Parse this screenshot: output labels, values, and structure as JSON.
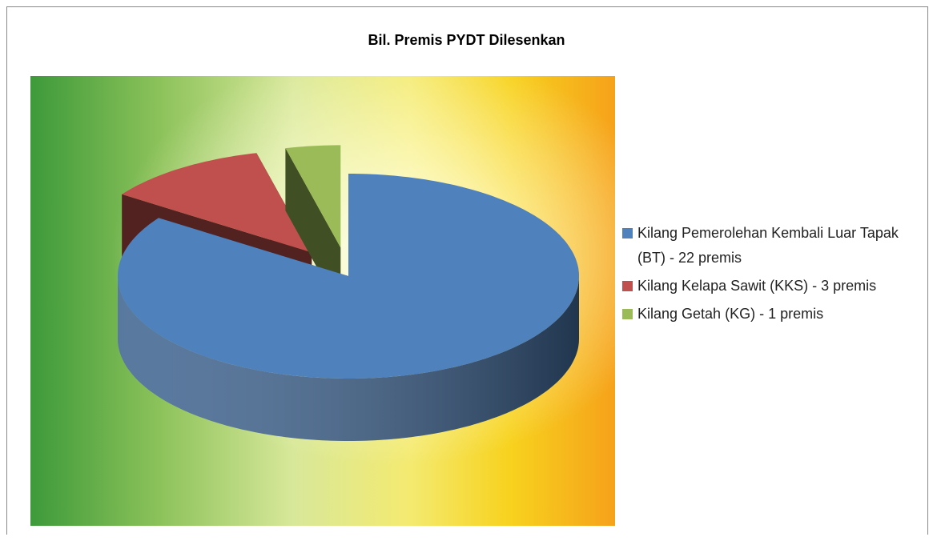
{
  "chart_data": {
    "type": "pie3d",
    "title": "Bil. Premis PYDT Dilesenkan",
    "categories": [
      "Kilang Pemerolehan Kembali Luar Tapak (BT) - 22 premis",
      "Kilang Kelapa Sawit (KKS) - 3 premis",
      "Kilang Getah (KG) - 1 premis"
    ],
    "values": [
      22,
      3,
      1
    ],
    "colors": [
      "#4f81bd",
      "#c0504d",
      "#9bbb59"
    ],
    "legend": "right"
  }
}
